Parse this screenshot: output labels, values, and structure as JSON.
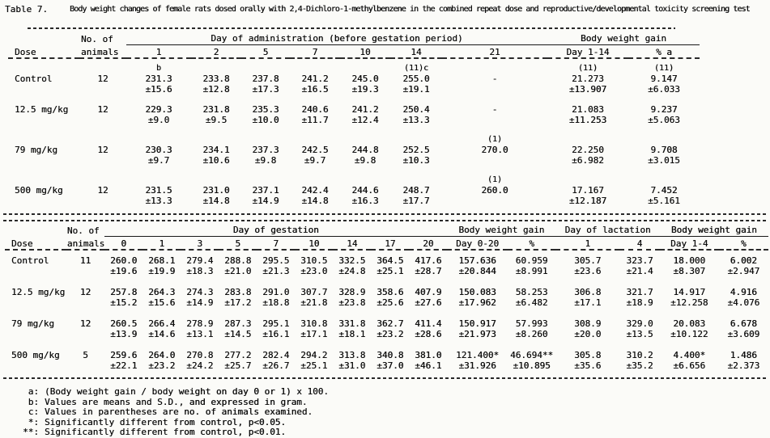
{
  "title": {
    "label": "Table 7.",
    "text": "Body weight changes of female rats dosed orally with 2,4-Dichloro-1-methylbenzene in the combined repeat dose and reproductive/developmental toxicity screening test"
  },
  "colors": {
    "text": "#0e0e0e",
    "background": "#fbfbf8",
    "rule": "#282828"
  },
  "table1": {
    "header": {
      "dose": "Dose",
      "animals": [
        "No. of",
        "animals"
      ],
      "groups": [
        {
          "label": "Day of administration (before gestation period)",
          "cols": [
            "1",
            "2",
            "5",
            "7",
            "10",
            "14",
            "21"
          ]
        },
        {
          "label": "Body weight gain",
          "cols": [
            "Day 1-14",
            "% a"
          ]
        }
      ]
    },
    "rows": [
      {
        "dose": "Control",
        "n": "12",
        "cells": [
          [
            "231.3",
            "±15.6",
            "b"
          ],
          [
            "233.8",
            "±12.8",
            ""
          ],
          [
            "237.8",
            "±17.3",
            ""
          ],
          [
            "241.2",
            "±16.5",
            ""
          ],
          [
            "245.0",
            "±19.3",
            ""
          ],
          [
            "255.0",
            "±19.1",
            "(11)c"
          ],
          [
            "-",
            "",
            ""
          ],
          [
            "21.273",
            "±13.907",
            "(11)"
          ],
          [
            "9.147",
            "±6.033",
            "(11)"
          ]
        ]
      },
      {
        "dose": "12.5 mg/kg",
        "n": "12",
        "cells": [
          [
            "229.3",
            "±9.0",
            ""
          ],
          [
            "231.8",
            "±9.5",
            ""
          ],
          [
            "235.3",
            "±10.0",
            ""
          ],
          [
            "240.6",
            "±11.7",
            ""
          ],
          [
            "241.2",
            "±12.4",
            ""
          ],
          [
            "250.4",
            "±13.3",
            ""
          ],
          [
            "-",
            "",
            ""
          ],
          [
            "21.083",
            "±11.253",
            ""
          ],
          [
            "9.237",
            "±5.063",
            ""
          ]
        ]
      },
      {
        "dose": "79 mg/kg",
        "n": "12",
        "cells": [
          [
            "230.3",
            "±9.7",
            ""
          ],
          [
            "234.1",
            "±10.6",
            ""
          ],
          [
            "237.3",
            "±9.8",
            ""
          ],
          [
            "242.5",
            "±9.7",
            ""
          ],
          [
            "244.8",
            "±9.8",
            ""
          ],
          [
            "252.5",
            "±10.3",
            ""
          ],
          [
            "270.0",
            "",
            "(1)"
          ],
          [
            "22.250",
            "±6.982",
            ""
          ],
          [
            "9.708",
            "±3.015",
            ""
          ]
        ]
      },
      {
        "dose": "500 mg/kg",
        "n": "12",
        "cells": [
          [
            "231.5",
            "±13.3",
            ""
          ],
          [
            "231.0",
            "±14.8",
            ""
          ],
          [
            "237.1",
            "±14.9",
            ""
          ],
          [
            "242.4",
            "±14.8",
            ""
          ],
          [
            "244.6",
            "±16.3",
            ""
          ],
          [
            "248.7",
            "±17.7",
            ""
          ],
          [
            "260.0",
            "",
            "(1)"
          ],
          [
            "17.167",
            "±12.187",
            ""
          ],
          [
            "7.452",
            "±5.161",
            ""
          ]
        ]
      }
    ]
  },
  "table2": {
    "header": {
      "dose": "Dose",
      "animals": [
        "No. of",
        "animals"
      ],
      "groups": [
        {
          "label": "Day of gestation",
          "cols": [
            "0",
            "1",
            "3",
            "5",
            "7",
            "10",
            "14",
            "17",
            "20"
          ]
        },
        {
          "label": "Body weight gain",
          "cols": [
            "Day 0-20",
            "%"
          ]
        },
        {
          "label": "Day of lactation",
          "cols": [
            "1",
            "4"
          ]
        },
        {
          "label": "Body weight gain",
          "cols": [
            "Day 1-4",
            "%"
          ]
        }
      ]
    },
    "rows": [
      {
        "dose": "Control",
        "n": "11",
        "cells": [
          [
            "260.0",
            "±19.6",
            ""
          ],
          [
            "268.1",
            "±19.9",
            ""
          ],
          [
            "279.4",
            "±18.3",
            ""
          ],
          [
            "288.8",
            "±21.0",
            ""
          ],
          [
            "295.5",
            "±21.3",
            ""
          ],
          [
            "310.5",
            "±23.0",
            ""
          ],
          [
            "332.5",
            "±24.8",
            ""
          ],
          [
            "364.5",
            "±25.1",
            ""
          ],
          [
            "417.6",
            "±28.7",
            ""
          ],
          [
            "157.636",
            "±20.844",
            ""
          ],
          [
            "60.959",
            "±8.991",
            ""
          ],
          [
            "305.7",
            "±23.6",
            ""
          ],
          [
            "323.7",
            "±21.4",
            ""
          ],
          [
            "18.000",
            "±8.307",
            ""
          ],
          [
            "6.002",
            "±2.947",
            ""
          ]
        ]
      },
      {
        "dose": "12.5 mg/kg",
        "n": "12",
        "cells": [
          [
            "257.8",
            "±15.2",
            ""
          ],
          [
            "264.3",
            "±15.6",
            ""
          ],
          [
            "274.3",
            "±14.9",
            ""
          ],
          [
            "283.8",
            "±17.2",
            ""
          ],
          [
            "291.0",
            "±18.8",
            ""
          ],
          [
            "307.7",
            "±21.8",
            ""
          ],
          [
            "328.9",
            "±23.8",
            ""
          ],
          [
            "358.6",
            "±25.6",
            ""
          ],
          [
            "407.9",
            "±27.6",
            ""
          ],
          [
            "150.083",
            "±17.962",
            ""
          ],
          [
            "58.253",
            "±6.482",
            ""
          ],
          [
            "306.8",
            "±17.1",
            ""
          ],
          [
            "321.7",
            "±18.9",
            ""
          ],
          [
            "14.917",
            "±12.258",
            ""
          ],
          [
            "4.916",
            "±4.076",
            ""
          ]
        ]
      },
      {
        "dose": "79 mg/kg",
        "n": "12",
        "cells": [
          [
            "260.5",
            "±13.9",
            ""
          ],
          [
            "266.4",
            "±14.6",
            ""
          ],
          [
            "278.9",
            "±13.1",
            ""
          ],
          [
            "287.3",
            "±14.5",
            ""
          ],
          [
            "295.1",
            "±16.1",
            ""
          ],
          [
            "310.8",
            "±17.1",
            ""
          ],
          [
            "331.8",
            "±18.1",
            ""
          ],
          [
            "362.7",
            "±23.2",
            ""
          ],
          [
            "411.4",
            "±28.6",
            ""
          ],
          [
            "150.917",
            "±21.973",
            ""
          ],
          [
            "57.993",
            "±8.260",
            ""
          ],
          [
            "308.9",
            "±20.0",
            ""
          ],
          [
            "329.0",
            "±13.5",
            ""
          ],
          [
            "20.083",
            "±10.122",
            ""
          ],
          [
            "6.678",
            "±3.609",
            ""
          ]
        ]
      },
      {
        "dose": "500 mg/kg",
        "n": "5",
        "cells": [
          [
            "259.6",
            "±22.1",
            ""
          ],
          [
            "264.0",
            "±23.2",
            ""
          ],
          [
            "270.8",
            "±24.2",
            ""
          ],
          [
            "277.2",
            "±25.7",
            ""
          ],
          [
            "282.4",
            "±26.7",
            ""
          ],
          [
            "294.2",
            "±25.1",
            ""
          ],
          [
            "313.8",
            "±31.0",
            ""
          ],
          [
            "340.8",
            "±37.0",
            ""
          ],
          [
            "381.0",
            "±46.1",
            ""
          ],
          [
            "121.400*",
            "±31.926",
            ""
          ],
          [
            "46.694**",
            "±10.895",
            ""
          ],
          [
            "305.8",
            "±35.6",
            ""
          ],
          [
            "310.2",
            "±35.2",
            ""
          ],
          [
            "4.400*",
            "±6.656",
            ""
          ],
          [
            "1.486",
            "±2.373",
            ""
          ]
        ]
      }
    ]
  },
  "footnotes": [
    {
      "marker": "a:",
      "text": "(Body weight gain / body weight on day 0 or 1) x 100."
    },
    {
      "marker": "b:",
      "text": "Values are means and S.D., and expressed in gram."
    },
    {
      "marker": "c:",
      "text": "Values in parentheses are no. of animals examined."
    },
    {
      "marker": "*:",
      "text": "Significantly different from control, p<0.05."
    },
    {
      "marker": "**:",
      "text": "Significantly different from control, p<0.01."
    }
  ]
}
